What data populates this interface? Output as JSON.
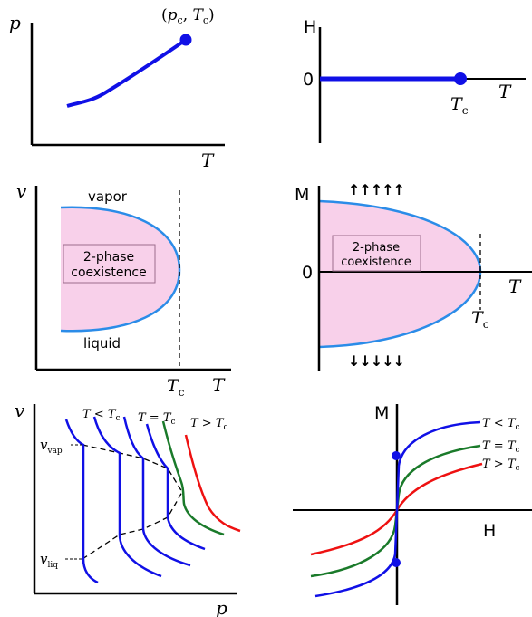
{
  "colors": {
    "axis": "#000000",
    "blue_dark": "#1010e6",
    "blue_light": "#2b8ce8",
    "pink_fill": "#f8d0ea",
    "green": "#1a7a2a",
    "red": "#ee1111"
  },
  "panel1": {
    "y_label": "p",
    "x_label": "T",
    "point_label": "(p_c, T_c)"
  },
  "panel2": {
    "y_label": "H",
    "zero_label": "0",
    "x_label": "T",
    "tc_label": "T_c"
  },
  "panel3": {
    "y_label": "v",
    "vapor_label": "vapor",
    "liquid_label": "liquid",
    "box_line1": "2-phase",
    "box_line2": "coexistence",
    "tc_label": "T_c",
    "x_label": "T"
  },
  "panel4": {
    "y_label": "M",
    "zero_label": "0",
    "x_label": "T",
    "tc_label": "T_c",
    "box_line1": "2-phase",
    "box_line2": "coexistence",
    "arrows_up": "↑↑↑↑↑",
    "arrows_down": "↓↓↓↓↓"
  },
  "panel5": {
    "y_label": "v",
    "x_label": "p",
    "v_vap_label": "v_vap",
    "v_liq_label": "v_liq",
    "label_below": "T < T_c",
    "label_equal": "T = T_c",
    "label_above": "T > T_c"
  },
  "panel6": {
    "y_label": "M",
    "x_label": "H",
    "label_below": "T < T_c",
    "label_equal": "T = T_c",
    "label_above": "T > T_c"
  }
}
